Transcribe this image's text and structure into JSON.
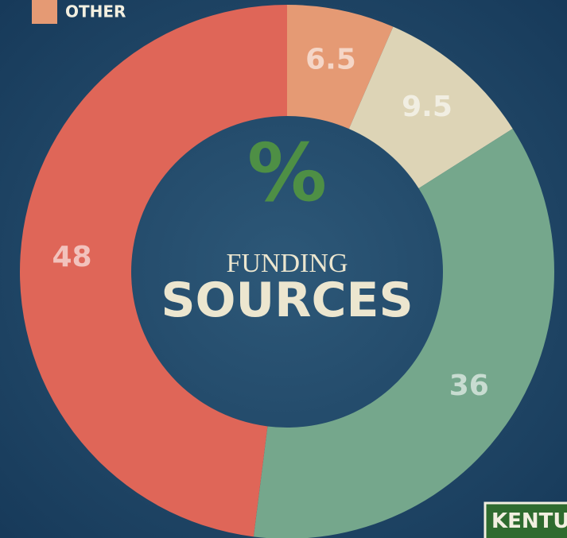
{
  "chart_data": {
    "type": "donut",
    "title_lines": [
      "%",
      "FUNDING",
      "SOURCES"
    ],
    "categories": [
      "OTHER",
      null,
      null,
      null
    ],
    "values": [
      6.5,
      9.5,
      36,
      48
    ],
    "colors": [
      "#e59a74",
      "#ddd4b6",
      "#75a78c",
      "#df6658"
    ],
    "legend": "top-left"
  },
  "logo": "KENTU"
}
